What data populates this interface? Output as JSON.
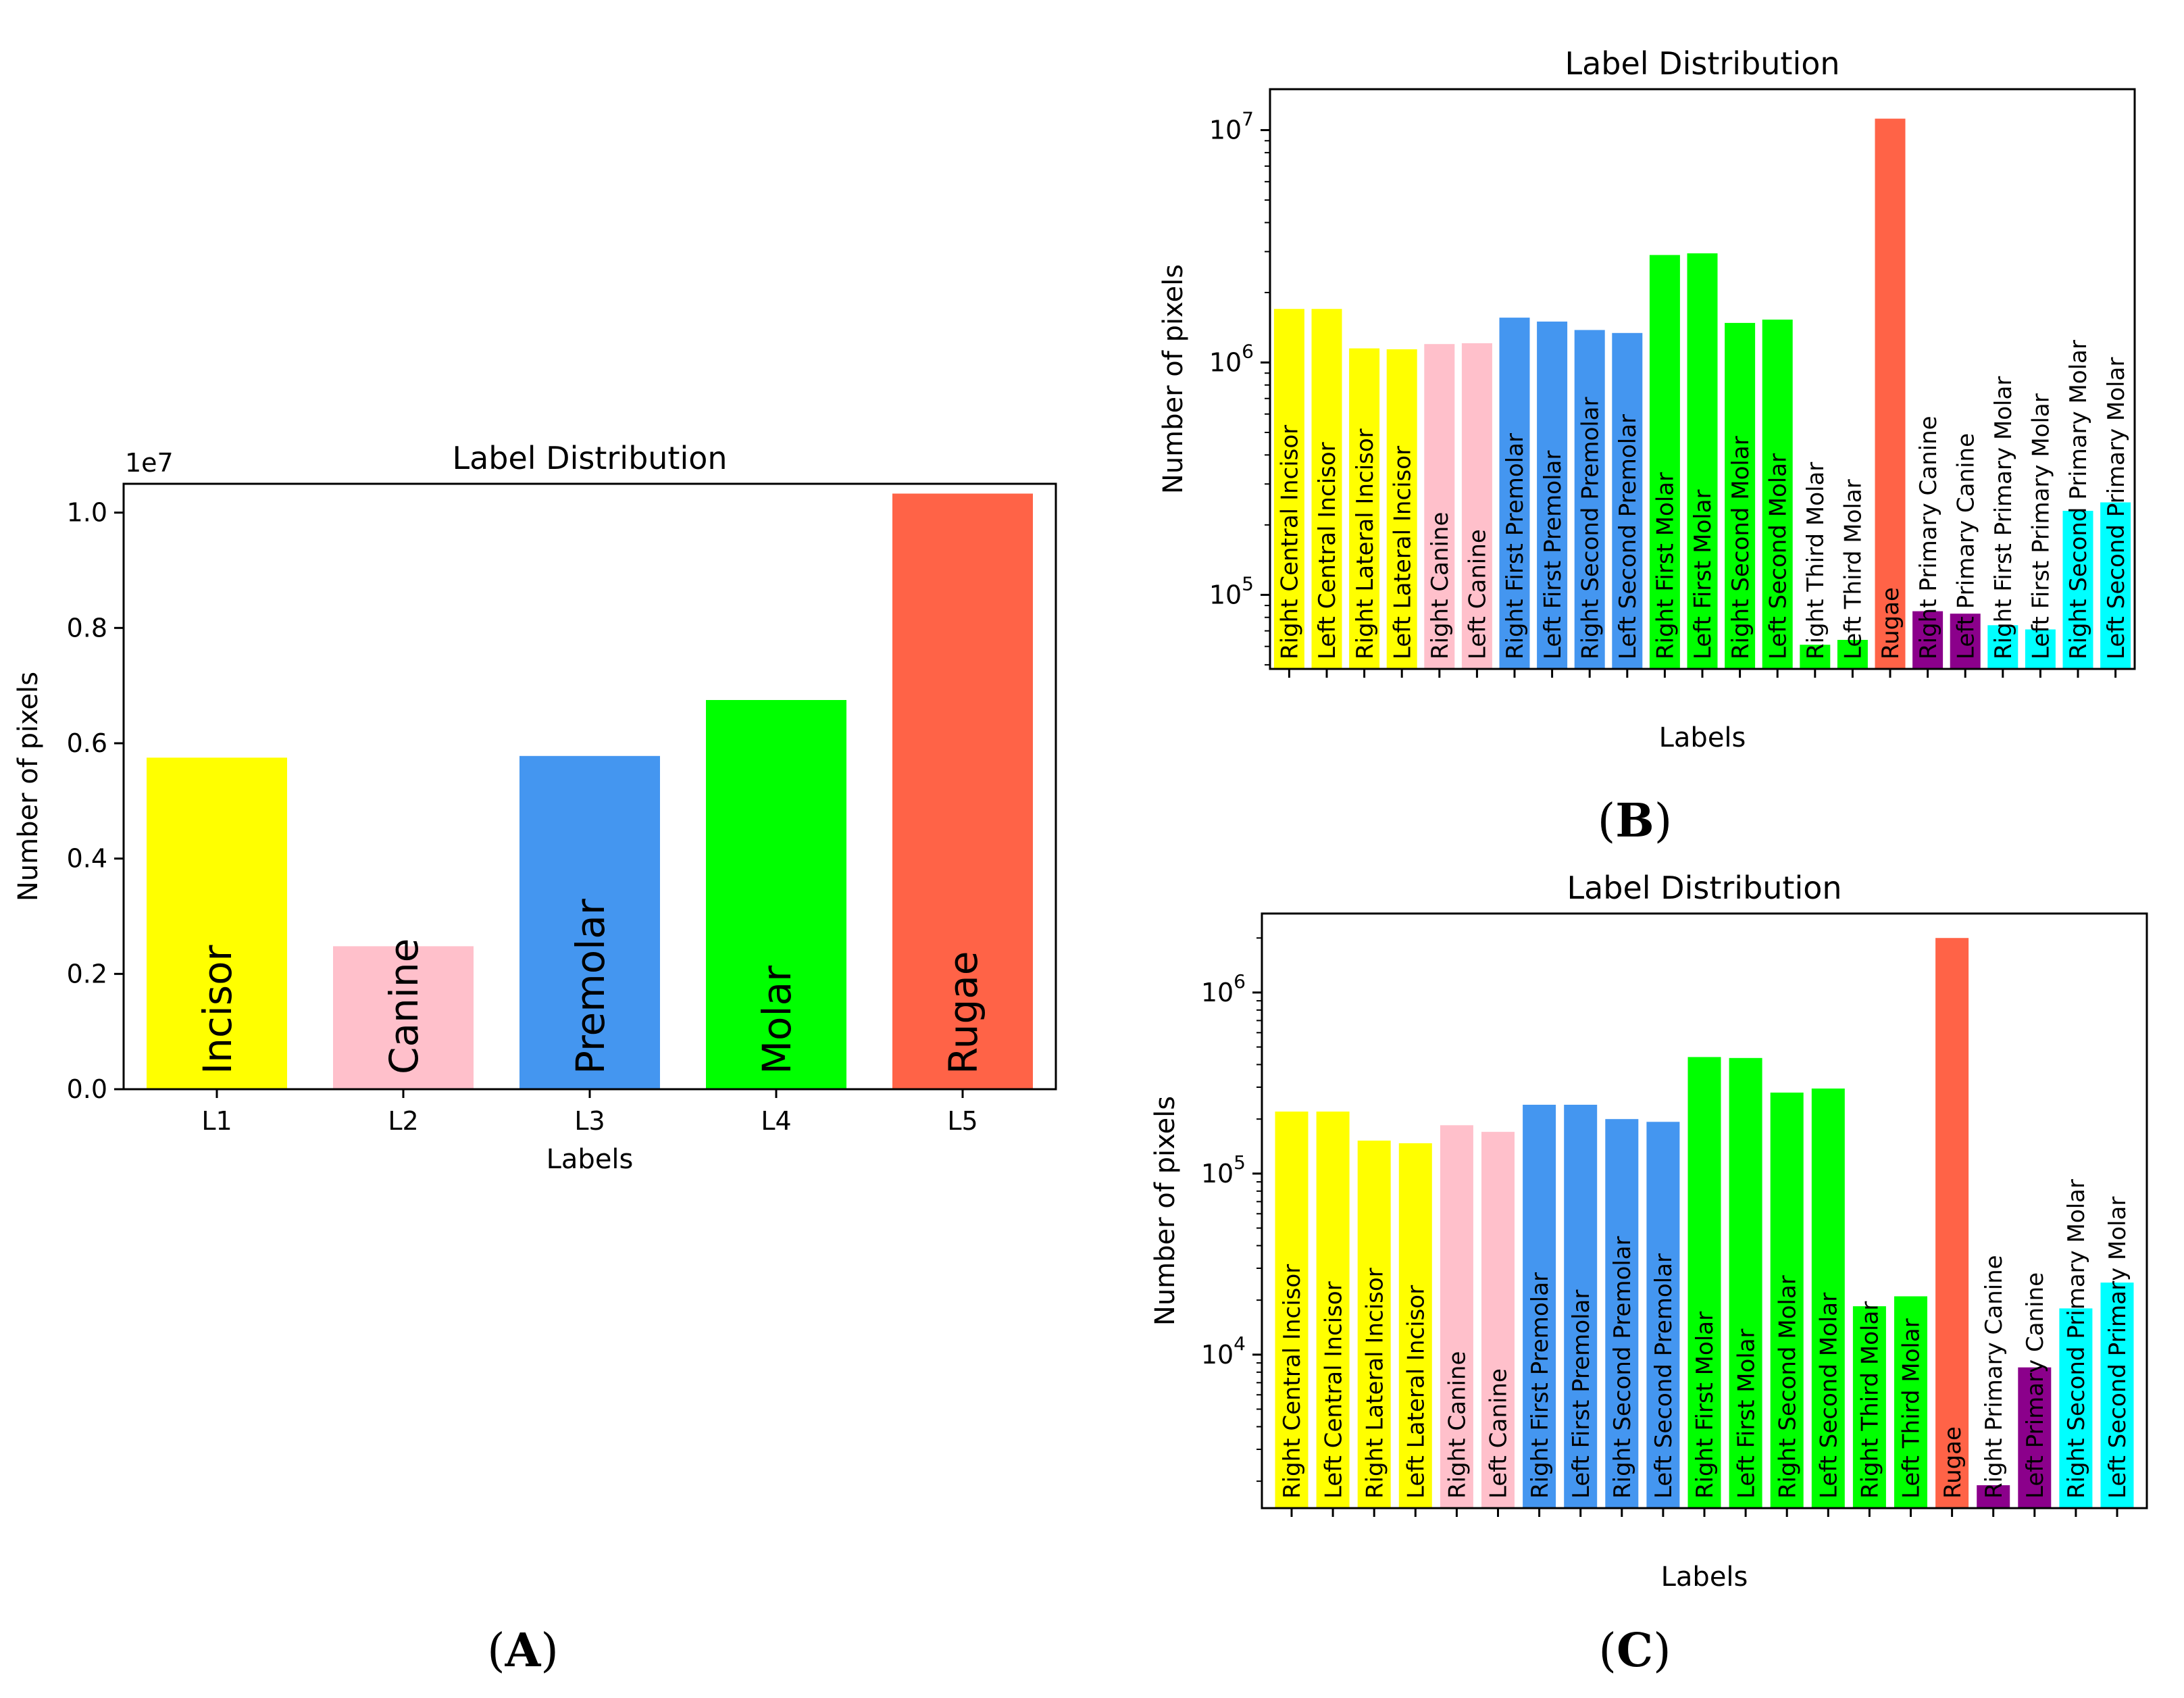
{
  "figure": {
    "panels": [
      {
        "letter": "A"
      },
      {
        "letter": "B"
      },
      {
        "letter": "C"
      }
    ]
  },
  "chart_data": [
    {
      "panel": "A",
      "type": "bar",
      "title": "Label Distribution",
      "xlabel": "Labels",
      "ylabel": "Number of pixels",
      "y_offset_label": "1e7",
      "yscale": "linear",
      "ylim": [
        0,
        10500000.0
      ],
      "yticks": [
        0,
        2000000,
        4000000,
        6000000,
        8000000,
        10000000
      ],
      "ytick_labels": [
        "0.0",
        "0.2",
        "0.4",
        "0.6",
        "0.8",
        "1.0"
      ],
      "grid": false,
      "categories": [
        "L1",
        "L2",
        "L3",
        "L4",
        "L5"
      ],
      "bar_labels": [
        "Incisor",
        "Canine",
        "Premolar",
        "Molar",
        "Rugae"
      ],
      "values": [
        5750000,
        2480000,
        5780000,
        6750000,
        10330000
      ],
      "colors": [
        "#ffff00",
        "#ffc0cb",
        "#4496f0",
        "#00ff00",
        "#ff6347"
      ]
    },
    {
      "panel": "B",
      "type": "bar",
      "title": "Label Distribution",
      "xlabel": "Labels",
      "ylabel": "Number of pixels",
      "yscale": "log",
      "ylim": [
        48000,
        15000000
      ],
      "yticks": [
        100000,
        1000000,
        10000000
      ],
      "ytick_labels": [
        {
          "base": "10",
          "exp": "5"
        },
        {
          "base": "10",
          "exp": "6"
        },
        {
          "base": "10",
          "exp": "7"
        }
      ],
      "grid": false,
      "categories": [
        "Right Central Incisor",
        "Left Central Incisor",
        "Right Lateral Incisor",
        "Left Lateral Incisor",
        "Right Canine",
        "Left Canine",
        "Right First Premolar",
        "Left First Premolar",
        "Right Second Premolar",
        "Left Second Premolar",
        "Right First Molar",
        "Left First Molar",
        "Right Second Molar",
        "Left Second Molar",
        "Right Third Molar",
        "Left Third Molar",
        "Rugae",
        "Right Primary Canine",
        "Left Primary Canine",
        "Right First Primary Molar",
        "Left First Primary Molar",
        "Right Second Primary Molar",
        "Left Second Primary Molar"
      ],
      "values": [
        1700000,
        1700000,
        1150000,
        1140000,
        1200000,
        1210000,
        1560000,
        1500000,
        1380000,
        1340000,
        2900000,
        2950000,
        1480000,
        1530000,
        61000,
        64000,
        11200000,
        85000,
        83000,
        74000,
        71000,
        230000,
        250000
      ],
      "colors": [
        "#ffff00",
        "#ffff00",
        "#ffff00",
        "#ffff00",
        "#ffc0cb",
        "#ffc0cb",
        "#4496f0",
        "#4496f0",
        "#4496f0",
        "#4496f0",
        "#00ff00",
        "#00ff00",
        "#00ff00",
        "#00ff00",
        "#00ff00",
        "#00ff00",
        "#ff6347",
        "#8b008b",
        "#8b008b",
        "#00ffff",
        "#00ffff",
        "#00ffff",
        "#00ffff"
      ]
    },
    {
      "panel": "C",
      "type": "bar",
      "title": "Label Distribution",
      "xlabel": "Labels",
      "ylabel": "Number of pixels",
      "yscale": "log",
      "ylim": [
        1420,
        2730000
      ],
      "yticks": [
        10000,
        100000,
        1000000
      ],
      "ytick_labels": [
        {
          "base": "10",
          "exp": "4"
        },
        {
          "base": "10",
          "exp": "5"
        },
        {
          "base": "10",
          "exp": "6"
        }
      ],
      "grid": false,
      "categories": [
        "Right Central Incisor",
        "Left Central Incisor",
        "Right Lateral Incisor",
        "Left Lateral Incisor",
        "Right Canine",
        "Left Canine",
        "Right First Premolar",
        "Left First Premolar",
        "Right Second Premolar",
        "Left Second Premolar",
        "Right First Molar",
        "Left First Molar",
        "Right Second Molar",
        "Left Second Molar",
        "Right Third Molar",
        "Left Third Molar",
        "Rugae",
        "Right Primary Canine",
        "Left Primary Canine",
        "Right Second Primary Molar",
        "Left Second Primary Molar"
      ],
      "values": [
        220000,
        220000,
        152000,
        147000,
        185000,
        170000,
        240000,
        240000,
        200000,
        193000,
        440000,
        435000,
        280000,
        295000,
        18500,
        21000,
        2000000,
        1900,
        8500,
        18000,
        25000
      ],
      "colors": [
        "#ffff00",
        "#ffff00",
        "#ffff00",
        "#ffff00",
        "#ffc0cb",
        "#ffc0cb",
        "#4496f0",
        "#4496f0",
        "#4496f0",
        "#4496f0",
        "#00ff00",
        "#00ff00",
        "#00ff00",
        "#00ff00",
        "#00ff00",
        "#00ff00",
        "#ff6347",
        "#8b008b",
        "#8b008b",
        "#00ffff",
        "#00ffff"
      ]
    }
  ]
}
